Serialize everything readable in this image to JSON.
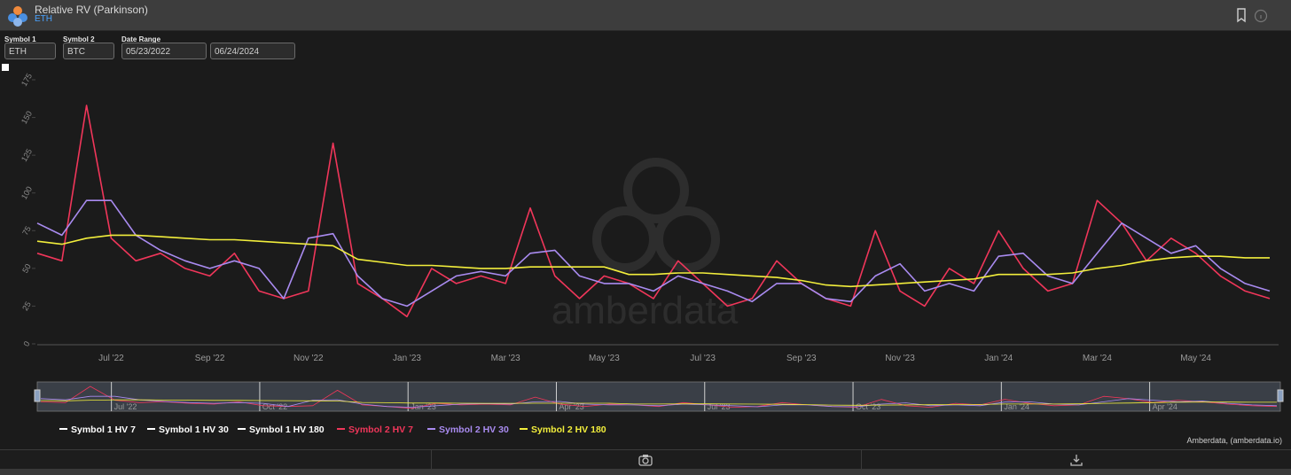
{
  "header": {
    "title": "Relative RV (Parkinson)",
    "subtitle": "ETH"
  },
  "controls": [
    {
      "label": "Symbol 1",
      "value": "ETH"
    },
    {
      "label": "Symbol 2",
      "value": "BTC"
    },
    {
      "label": "Date Range",
      "value": "05/23/2022"
    },
    {
      "value": "06/24/2024"
    }
  ],
  "chart_data": {
    "type": "line",
    "watermark": "amberdata",
    "credits": "Amberdata, (amberdata.io)",
    "ylim": [
      0,
      175
    ],
    "yticks": [
      0,
      25,
      50,
      75,
      100,
      125,
      150,
      175
    ],
    "categories": [
      null,
      null,
      null,
      "Jul '22",
      null,
      null,
      null,
      "Sep '22",
      null,
      null,
      null,
      "Nov '22",
      null,
      null,
      null,
      "Jan '23",
      null,
      null,
      null,
      "Mar '23",
      null,
      null,
      null,
      "May '23",
      null,
      null,
      null,
      "Jul '23",
      null,
      null,
      null,
      "Sep '23",
      null,
      null,
      null,
      "Nov '23",
      null,
      null,
      null,
      "Jan '24",
      null,
      null,
      null,
      "Mar '24",
      null,
      null,
      null,
      "May '24",
      null,
      null,
      null
    ],
    "navigator_labels": [
      "Jul '22",
      "Oct '22",
      "Jan '23",
      "Apr '23",
      "Jul '23",
      "Oct '23",
      "Jan '24",
      "Apr '24"
    ],
    "series": [
      {
        "name": "Symbol 1 HV 7",
        "color": "#ffffff"
      },
      {
        "name": "Symbol 1 HV 30",
        "color": "#ffffff"
      },
      {
        "name": "Symbol 1 HV 180",
        "color": "#ffffff"
      },
      {
        "name": "Symbol 2 HV 7",
        "color": "#f0365a",
        "values": [
          60,
          55,
          158,
          70,
          55,
          60,
          50,
          45,
          60,
          35,
          30,
          35,
          133,
          40,
          30,
          18,
          50,
          40,
          45,
          40,
          90,
          45,
          30,
          45,
          40,
          30,
          55,
          40,
          25,
          30,
          55,
          40,
          30,
          25,
          75,
          35,
          25,
          50,
          40,
          75,
          50,
          35,
          40,
          95,
          80,
          55,
          70,
          60,
          45,
          35,
          30
        ]
      },
      {
        "name": "Symbol 2 HV 30",
        "color": "#a98bf0",
        "values": [
          80,
          72,
          95,
          95,
          72,
          62,
          55,
          50,
          55,
          50,
          30,
          70,
          73,
          45,
          30,
          25,
          35,
          45,
          48,
          45,
          60,
          62,
          45,
          40,
          40,
          35,
          45,
          40,
          35,
          28,
          40,
          40,
          30,
          28,
          45,
          53,
          35,
          40,
          35,
          58,
          60,
          45,
          40,
          60,
          80,
          70,
          60,
          65,
          50,
          40,
          35
        ]
      },
      {
        "name": "Symbol 2 HV 180",
        "color": "#f2ee3c",
        "values": [
          68,
          66,
          70,
          72,
          72,
          71,
          70,
          69,
          69,
          68,
          67,
          66,
          65,
          56,
          54,
          52,
          52,
          51,
          50,
          50,
          51,
          51,
          51,
          51,
          46,
          46,
          47,
          47,
          46,
          45,
          44,
          42,
          39,
          38,
          39,
          40,
          41,
          42,
          43,
          46,
          46,
          46,
          47,
          50,
          52,
          55,
          57,
          58,
          58,
          57,
          57
        ]
      }
    ]
  }
}
